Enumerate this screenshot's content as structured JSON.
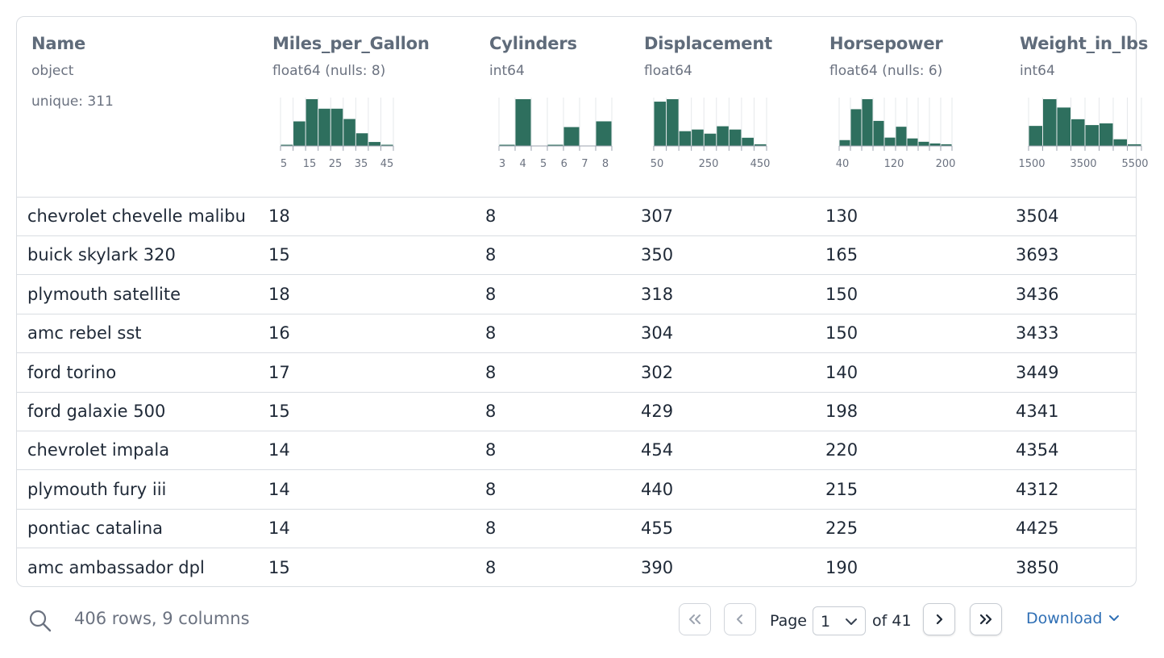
{
  "colors": {
    "bar": "#2e6f5e",
    "accent": "#2f6fb5",
    "border": "#d9dde2"
  },
  "columns": [
    {
      "name": "Name",
      "dtype": "object",
      "unique": "unique: 311"
    },
    {
      "name": "Miles_per_Gallon",
      "dtype": "float64 (nulls: 8)"
    },
    {
      "name": "Cylinders",
      "dtype": "int64"
    },
    {
      "name": "Displacement",
      "dtype": "float64"
    },
    {
      "name": "Horsepower",
      "dtype": "float64 (nulls: 6)"
    },
    {
      "name": "Weight_in_lbs",
      "dtype": "int64"
    }
  ],
  "chart_data": [
    {
      "type": "bar",
      "column": "Miles_per_Gallon",
      "values": [
        1,
        31,
        59,
        47,
        47,
        34,
        16,
        5,
        1
      ],
      "ticks": [
        "5",
        "15",
        "25",
        "35",
        "45"
      ]
    },
    {
      "type": "bar",
      "column": "Cylinders",
      "values": [
        1,
        57,
        0,
        1,
        23,
        0,
        30
      ],
      "ticks": [
        "3",
        "4",
        "5",
        "6",
        "7",
        "8"
      ]
    },
    {
      "type": "bar",
      "column": "Displacement",
      "values": [
        54,
        57,
        18,
        20,
        15,
        24,
        20,
        10,
        2
      ],
      "ticks": [
        "50",
        "250",
        "450"
      ]
    },
    {
      "type": "bar",
      "column": "Horsepower",
      "values": [
        7,
        44,
        56,
        30,
        10,
        23,
        9,
        5,
        3,
        2
      ],
      "ticks": [
        "40",
        "120",
        "200"
      ]
    },
    {
      "type": "bar",
      "column": "Weight_in_lbs",
      "values": [
        24,
        56,
        46,
        32,
        25,
        27,
        8,
        2
      ],
      "ticks": [
        "1500",
        "3500",
        "5500"
      ]
    }
  ],
  "rows": [
    [
      "chevrolet chevelle malibu",
      "18",
      "8",
      "307",
      "130",
      "3504"
    ],
    [
      "buick skylark 320",
      "15",
      "8",
      "350",
      "165",
      "3693"
    ],
    [
      "plymouth satellite",
      "18",
      "8",
      "318",
      "150",
      "3436"
    ],
    [
      "amc rebel sst",
      "16",
      "8",
      "304",
      "150",
      "3433"
    ],
    [
      "ford torino",
      "17",
      "8",
      "302",
      "140",
      "3449"
    ],
    [
      "ford galaxie 500",
      "15",
      "8",
      "429",
      "198",
      "4341"
    ],
    [
      "chevrolet impala",
      "14",
      "8",
      "454",
      "220",
      "4354"
    ],
    [
      "plymouth fury iii",
      "14",
      "8",
      "440",
      "215",
      "4312"
    ],
    [
      "pontiac catalina",
      "14",
      "8",
      "455",
      "225",
      "4425"
    ],
    [
      "amc ambassador dpl",
      "15",
      "8",
      "390",
      "190",
      "3850"
    ]
  ],
  "footer": {
    "row_count": "406 rows, 9 columns",
    "page_label": "Page",
    "page_value": "1",
    "of_label": "of 41",
    "download_label": "Download",
    "icons": {
      "search": "search-icon",
      "first": "chevrons-left-icon",
      "prev": "chevron-left-icon",
      "next": "chevron-right-icon",
      "last": "chevrons-right-icon",
      "select": "chevron-down-icon"
    }
  }
}
